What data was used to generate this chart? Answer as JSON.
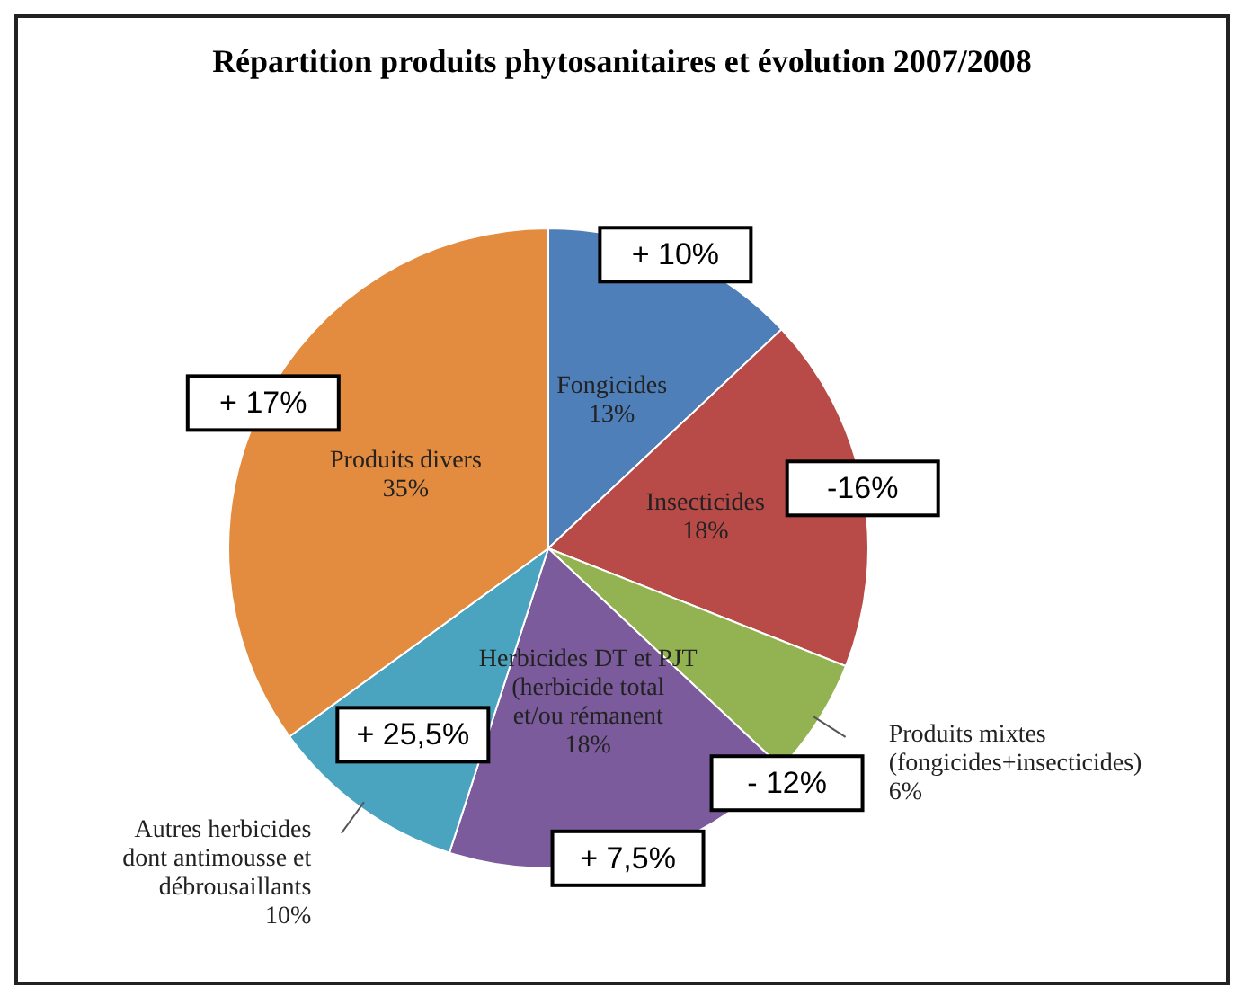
{
  "chart_data": {
    "type": "pie",
    "title": "Répartition produits phytosanitaires et évolution 2007/2008",
    "categories": [
      "Fongicides",
      "Insecticides",
      "Produits mixtes (fongicides+insecticides)",
      "Herbicides DT et PJT (herbicide total et/ou rémanent",
      "Autres herbicides dont antimousse et débrousaillants",
      "Produits divers"
    ],
    "values": [
      13,
      18,
      6,
      18,
      10,
      35
    ],
    "value_labels": [
      "13%",
      "18%",
      "6%",
      "18%",
      "10%",
      "35%"
    ],
    "colors": [
      "#4f7fb8",
      "#b84a47",
      "#93b251",
      "#7b5b9c",
      "#4aa3bf",
      "#e38b3f"
    ],
    "annotations": [
      "+ 10%",
      "-16%",
      "- 12%",
      "+ 7,5%",
      "+ 25,5%",
      "+ 17%"
    ]
  }
}
